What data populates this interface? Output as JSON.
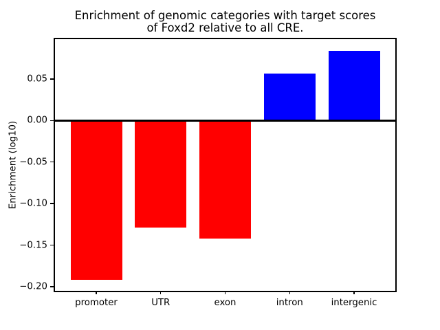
{
  "figure": {
    "title_line1": "Enrichment of genomic categories with target scores",
    "title_line2": "of Foxd2 relative to all CRE."
  },
  "chart_data": {
    "type": "bar",
    "title": "Enrichment of genomic categories with target scores of Foxd2 relative to all CRE.",
    "categories": [
      "promoter",
      "UTR",
      "exon",
      "intron",
      "intergenic"
    ],
    "values": [
      -0.192,
      -0.129,
      -0.142,
      0.057,
      0.084
    ],
    "bar_colors": [
      "#ff0000",
      "#ff0000",
      "#ff0000",
      "#0000ff",
      "#0000ff"
    ],
    "negative_color": "#ff0000",
    "positive_color": "#0000ff",
    "xlabel": "",
    "ylabel": "Enrichment (log10)",
    "yticks": [
      0.05,
      0.0,
      -0.05,
      -0.1,
      -0.15,
      -0.2
    ],
    "ylim": [
      -0.205,
      0.098
    ],
    "xlim": [
      -0.64,
      4.64
    ],
    "bar_width": 0.8,
    "grid": false,
    "legend": false,
    "zero_line": true,
    "background_color": "#ffffff",
    "axis_color": "#000000"
  }
}
